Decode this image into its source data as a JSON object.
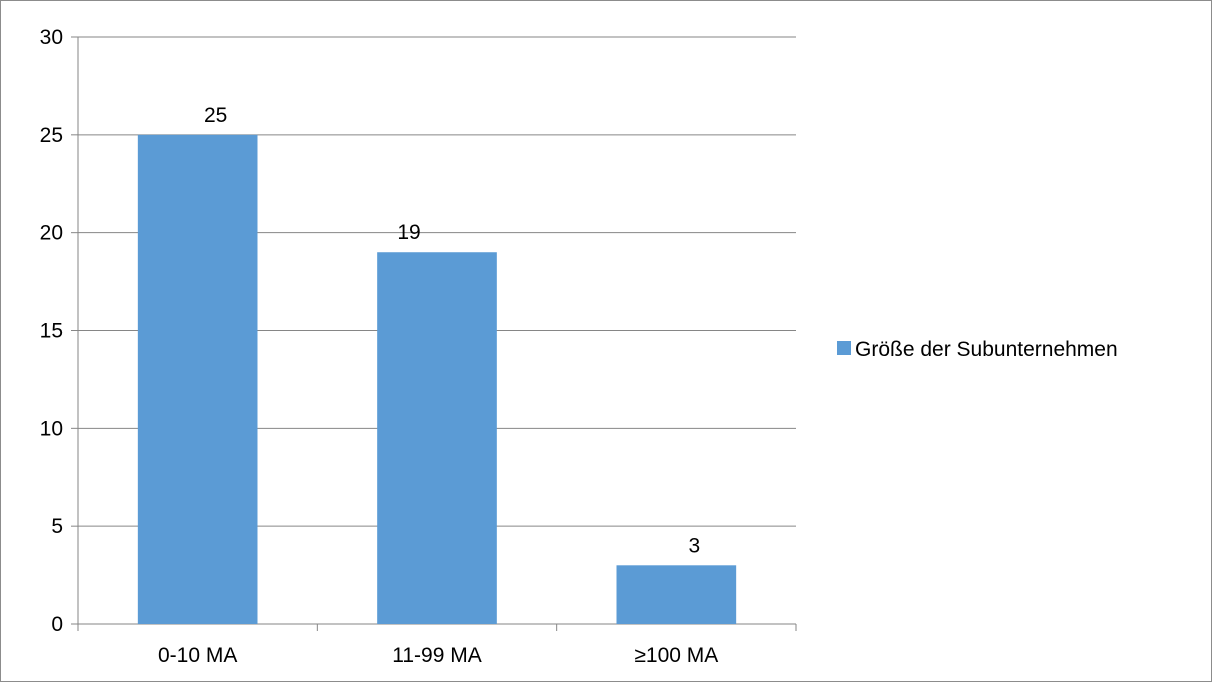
{
  "chart_data": {
    "type": "bar",
    "categories": [
      "0-10 MA",
      "11-99 MA",
      "≥100 MA"
    ],
    "series": [
      {
        "name": "Größe der Subunternehmen",
        "values": [
          25,
          19,
          3
        ],
        "color": "#5b9bd5"
      }
    ],
    "data_labels": [
      "25",
      "19",
      "3"
    ],
    "ylim": [
      0,
      30
    ],
    "y_ticks": [
      0,
      5,
      10,
      15,
      20,
      25,
      30
    ],
    "y_tick_labels": [
      "0",
      "5",
      "10",
      "15",
      "20",
      "25",
      "30"
    ],
    "grid": true,
    "legend_position": "right",
    "title": "",
    "xlabel": "",
    "ylabel": ""
  },
  "colors": {
    "grid": "#868686",
    "axis": "#868686",
    "bar": "#5b9bd5"
  }
}
